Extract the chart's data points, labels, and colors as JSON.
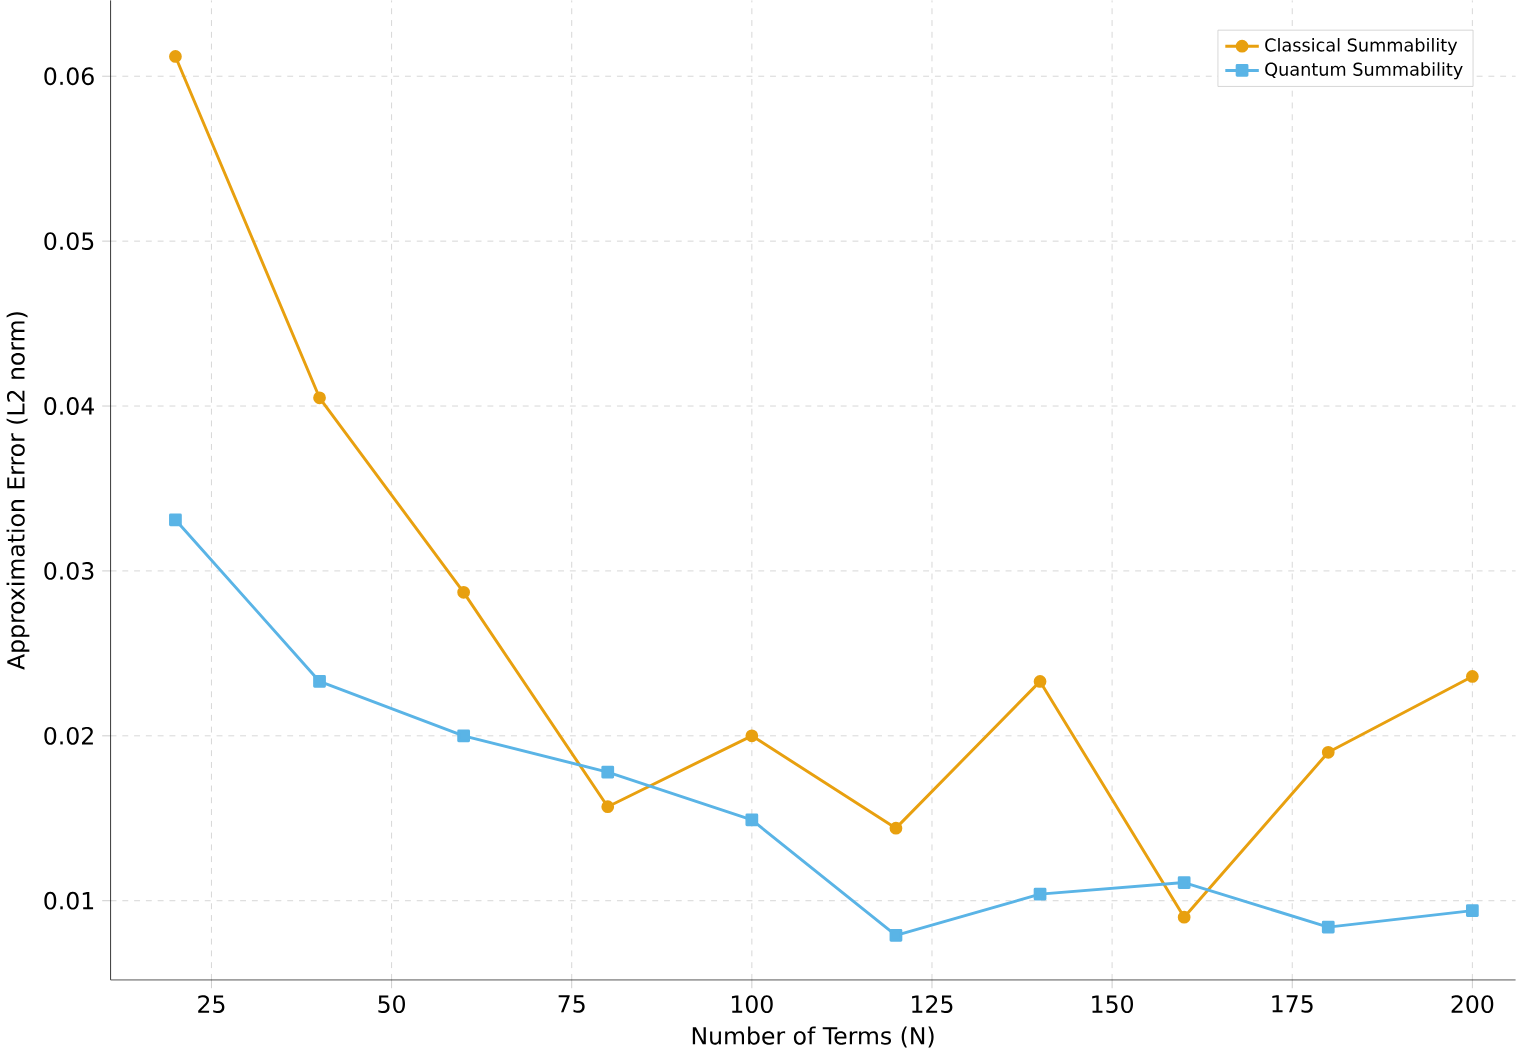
{
  "chart_data": {
    "type": "line",
    "xlabel": "Number of Terms (N)",
    "ylabel": "Approximation Error (L2 norm)",
    "x": [
      20,
      40,
      60,
      80,
      100,
      120,
      140,
      160,
      180,
      200
    ],
    "series": [
      {
        "name": "Classical Summability",
        "color": "#e8a00f",
        "marker": "circle",
        "values": [
          0.0612,
          0.0405,
          0.0287,
          0.0157,
          0.02,
          0.0144,
          0.0233,
          0.009,
          0.019,
          0.0236
        ]
      },
      {
        "name": "Quantum Summability",
        "color": "#5ab4e6",
        "marker": "square",
        "values": [
          0.0331,
          0.0233,
          0.02,
          0.0178,
          0.0149,
          0.0079,
          0.0104,
          0.0111,
          0.0084,
          0.0094
        ]
      }
    ],
    "xlim": [
      11,
      206
    ],
    "ylim": [
      0.0052,
      0.0646
    ],
    "xticks": [
      25,
      50,
      75,
      100,
      125,
      150,
      175,
      200
    ],
    "yticks": [
      {
        "value": 0.01,
        "label": "0.01"
      },
      {
        "value": 0.02,
        "label": "0.02"
      },
      {
        "value": 0.03,
        "label": "0.03"
      },
      {
        "value": 0.04,
        "label": "0.04"
      },
      {
        "value": 0.05,
        "label": "0.05"
      },
      {
        "value": 0.06,
        "label": "0.06"
      }
    ],
    "grid": true,
    "legend": "top right",
    "line_style": "solid"
  }
}
